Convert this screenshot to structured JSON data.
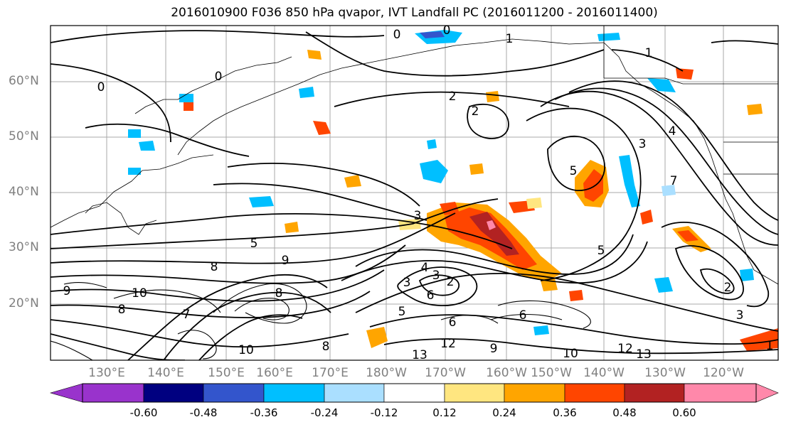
{
  "title": "2016010900 F036 850 hPa qvapor, IVT Landfall PC (2016011200 - 2016011400)",
  "map": {
    "lat_labels": [
      "60°N",
      "50°N",
      "40°N",
      "30°N",
      "20°N"
    ],
    "lon_labels": [
      "130°E",
      "140°E",
      "150°E",
      "160°E",
      "170°E",
      "180°W",
      "170°W",
      "160°W",
      "150°W",
      "140°W",
      "130°W",
      "120°W"
    ],
    "contour_labels": [
      "0",
      "0",
      "1",
      "1",
      "0",
      "0",
      "2",
      "2",
      "3",
      "4",
      "5",
      "3",
      "5",
      "5",
      "7",
      "9",
      "8",
      "10",
      "9",
      "10",
      "8",
      "3",
      "4",
      "3",
      "2",
      "5",
      "6",
      "6",
      "12",
      "9",
      "10",
      "12",
      "13",
      "13",
      "2",
      "3",
      "1",
      "7",
      "8",
      "8",
      "6"
    ]
  },
  "colorbar": {
    "colors": [
      "#9933cc",
      "#000080",
      "#3355cc",
      "#00bfff",
      "#aadfff",
      "#ffffff",
      "#ffe680",
      "#ffa500",
      "#ff4500",
      "#b22222",
      "#ff88aa"
    ],
    "tick_labels": [
      "-0.60",
      "-0.48",
      "-0.36",
      "-0.24",
      "-0.12",
      "0.12",
      "0.24",
      "0.36",
      "0.48",
      "0.60"
    ]
  }
}
